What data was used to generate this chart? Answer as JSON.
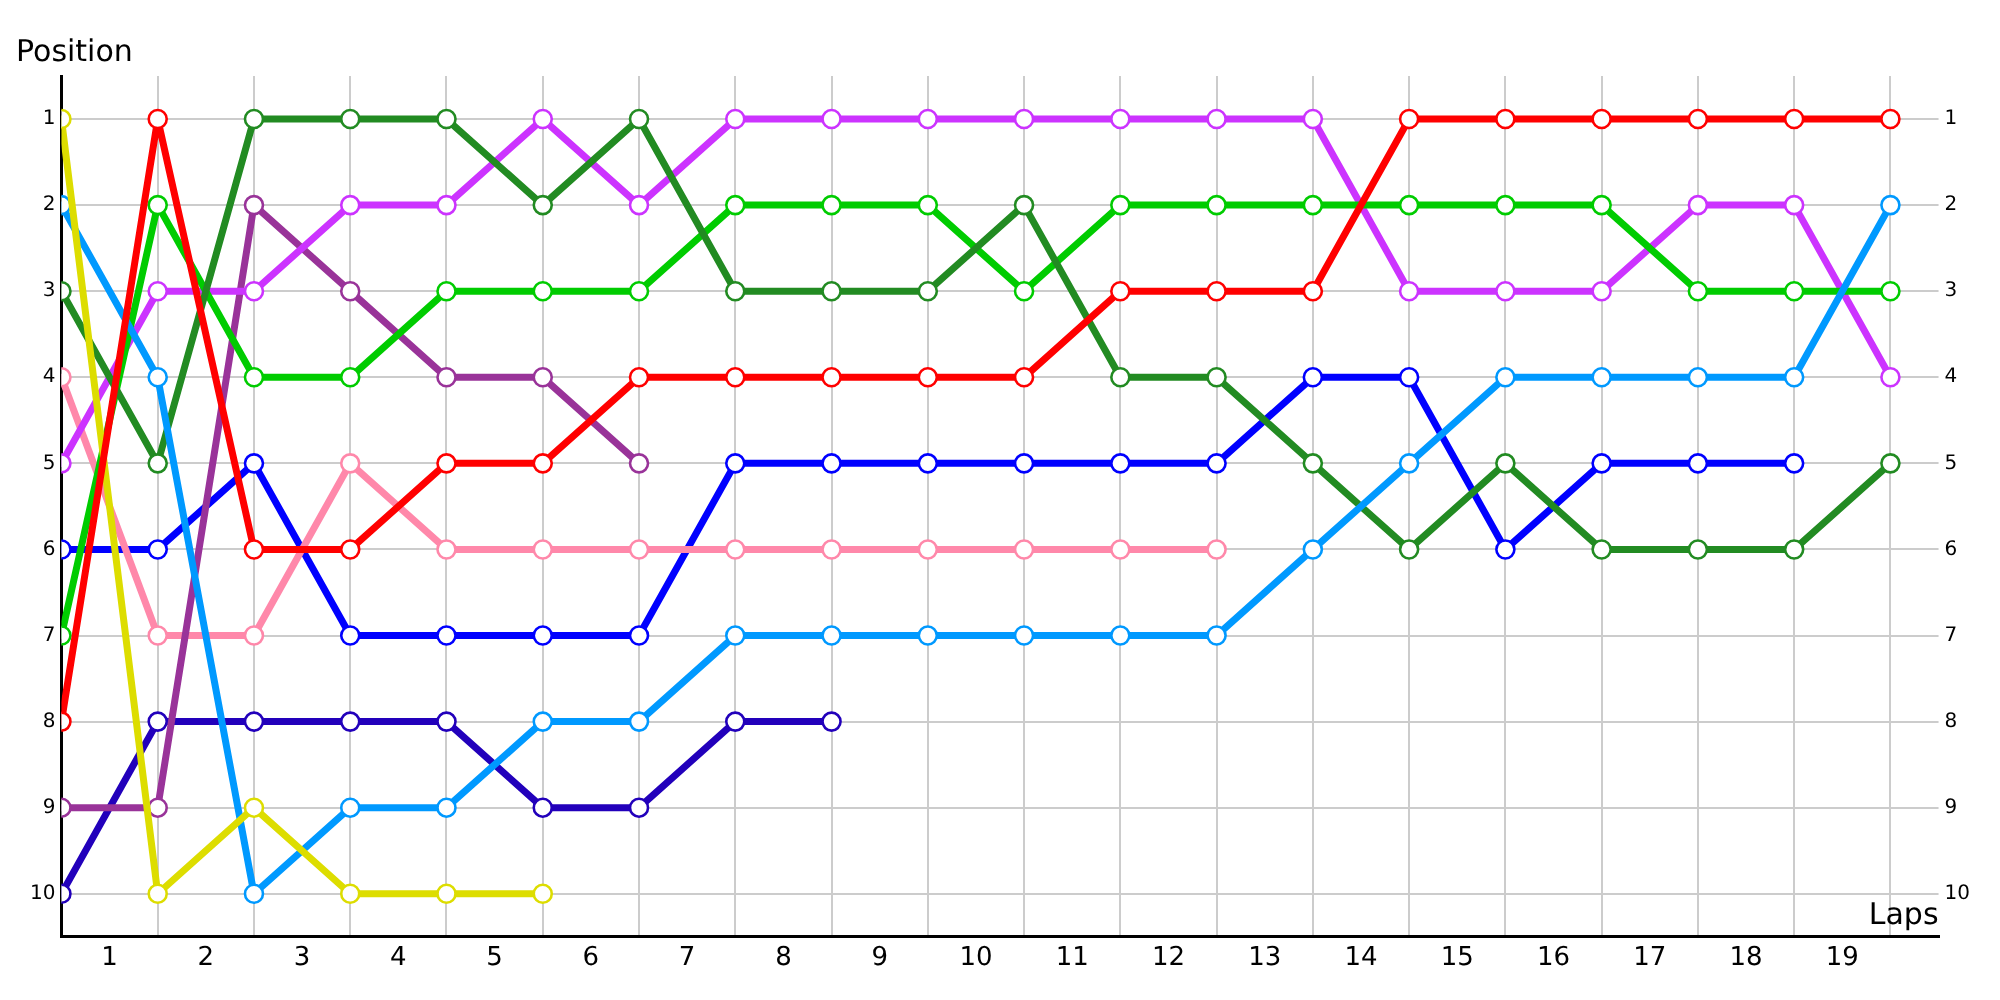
{
  "chart_data": {
    "type": "line",
    "xlabel": "Laps",
    "ylabel": "Position",
    "x": [
      0,
      1,
      2,
      3,
      4,
      5,
      6,
      7,
      8,
      9,
      10,
      11,
      12,
      13,
      14,
      15,
      16,
      17,
      18,
      19
    ],
    "series": [
      {
        "color": "#ff0000",
        "values": [
          8,
          1,
          6,
          6,
          5,
          5,
          4,
          4,
          4,
          4,
          4,
          3,
          3,
          3,
          1,
          1,
          1,
          1,
          1,
          1
        ]
      },
      {
        "color": "#dddd00",
        "values": [
          1,
          10,
          9,
          10,
          10,
          10,
          null,
          null,
          null,
          null,
          null,
          null,
          null,
          null,
          null,
          null,
          null,
          null,
          null,
          null
        ]
      },
      {
        "color": "#0099ff",
        "values": [
          2,
          4,
          10,
          9,
          9,
          8,
          8,
          7,
          7,
          7,
          7,
          7,
          7,
          6,
          5,
          4,
          4,
          4,
          4,
          2
        ]
      },
      {
        "color": "#228b22",
        "values": [
          3,
          5,
          1,
          1,
          1,
          2,
          1,
          3,
          3,
          3,
          2,
          4,
          4,
          5,
          6,
          5,
          6,
          6,
          6,
          5
        ]
      },
      {
        "color": "#00cc00",
        "values": [
          7,
          2,
          4,
          4,
          3,
          3,
          3,
          2,
          2,
          2,
          3,
          2,
          2,
          2,
          2,
          2,
          2,
          3,
          3,
          3
        ]
      },
      {
        "color": "#cc33ff",
        "values": [
          5,
          3,
          3,
          2,
          2,
          1,
          2,
          1,
          1,
          1,
          1,
          1,
          1,
          1,
          3,
          3,
          3,
          2,
          2,
          4
        ]
      },
      {
        "color": "#993399",
        "values": [
          9,
          9,
          2,
          3,
          4,
          4,
          5,
          null,
          null,
          null,
          null,
          null,
          null,
          null,
          null,
          null,
          null,
          null,
          null,
          null
        ]
      },
      {
        "color": "#ff88aa",
        "values": [
          4,
          7,
          7,
          5,
          6,
          6,
          6,
          6,
          6,
          6,
          6,
          6,
          6,
          null,
          null,
          null,
          null,
          null,
          null,
          null
        ]
      },
      {
        "color": "#0000ff",
        "values": [
          6,
          6,
          5,
          7,
          7,
          7,
          7,
          5,
          5,
          5,
          5,
          5,
          5,
          4,
          4,
          6,
          5,
          5,
          5,
          null
        ]
      },
      {
        "color": "#2200bb",
        "values": [
          10,
          8,
          8,
          8,
          8,
          9,
          9,
          8,
          8,
          null,
          null,
          null,
          null,
          null,
          null,
          null,
          null,
          null,
          null,
          null
        ]
      }
    ],
    "xlim": [
      0,
      19.5
    ],
    "xticks": [
      {
        "value": 0,
        "label": null
      },
      {
        "value": 0.5,
        "label": "1"
      },
      {
        "value": 1,
        "label": null
      },
      {
        "value": 1.5,
        "label": "2"
      },
      {
        "value": 2,
        "label": null
      },
      {
        "value": 2.5,
        "label": "3"
      },
      {
        "value": 3,
        "label": null
      },
      {
        "value": 3.5,
        "label": "4"
      },
      {
        "value": 4,
        "label": null
      },
      {
        "value": 4.5,
        "label": "5"
      },
      {
        "value": 5,
        "label": null
      },
      {
        "value": 5.5,
        "label": "6"
      },
      {
        "value": 6,
        "label": null
      },
      {
        "value": 6.5,
        "label": "7"
      },
      {
        "value": 7,
        "label": null
      },
      {
        "value": 7.5,
        "label": "8"
      },
      {
        "value": 8,
        "label": null
      },
      {
        "value": 8.5,
        "label": "9"
      },
      {
        "value": 9,
        "label": null
      },
      {
        "value": 9.5,
        "label": "10"
      },
      {
        "value": 10,
        "label": null
      },
      {
        "value": 10.5,
        "label": "11"
      },
      {
        "value": 11,
        "label": null
      },
      {
        "value": 11.5,
        "label": "12"
      },
      {
        "value": 12,
        "label": null
      },
      {
        "value": 12.5,
        "label": "13"
      },
      {
        "value": 13,
        "label": null
      },
      {
        "value": 13.5,
        "label": "14"
      },
      {
        "value": 14,
        "label": null
      },
      {
        "value": 14.5,
        "label": "15"
      },
      {
        "value": 15,
        "label": null
      },
      {
        "value": 15.5,
        "label": "16"
      },
      {
        "value": 16,
        "label": null
      },
      {
        "value": 16.5,
        "label": "17"
      },
      {
        "value": 17,
        "label": null
      },
      {
        "value": 17.5,
        "label": "18"
      },
      {
        "value": 18,
        "label": null
      },
      {
        "value": 18.5,
        "label": "19"
      },
      {
        "value": 19,
        "label": null
      }
    ],
    "ylim": [
      10.5,
      0.5
    ],
    "yticks": [
      1,
      2,
      3,
      4,
      5,
      6,
      7,
      8,
      9,
      10
    ],
    "y2lim": [
      10.5,
      0.5
    ],
    "y2ticks": [
      1,
      2,
      3,
      4,
      5,
      6,
      7,
      8,
      9,
      10
    ],
    "grid": true,
    "legend": false,
    "marker": "circle",
    "line_style": "solid"
  }
}
